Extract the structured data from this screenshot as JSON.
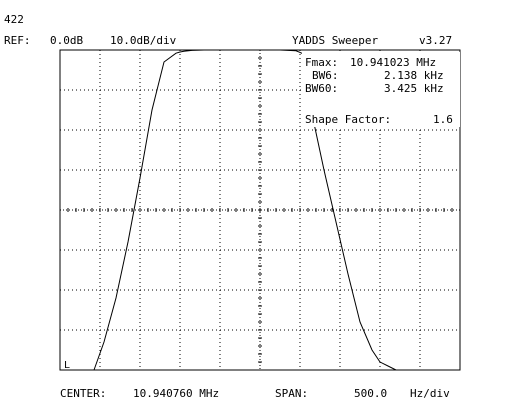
{
  "header": {
    "id_label": "422",
    "ref_label": "REF:",
    "ref_value": "0.0dB",
    "scale": "10.0dB/div",
    "app_title": "YADDS Sweeper",
    "version": "v3.27"
  },
  "readout": {
    "fmax_label": "Fmax:",
    "fmax_value": "10.941023 MHz",
    "bw6_label": "BW6:",
    "bw6_value": "2.138 kHz",
    "bw60_label": "BW60:",
    "bw60_value": "3.425 kHz",
    "shape_label": "Shape Factor:",
    "shape_value": "1.6"
  },
  "footer": {
    "center_label": "CENTER:",
    "center_value": "10.940760 MHz",
    "span_label": "SPAN:",
    "span_value": "500.0",
    "span_unit": "Hz/div"
  },
  "marker_label": "L",
  "colors": {
    "background": "#ffffff",
    "trace": "#000000",
    "grid": "#000000"
  },
  "chart_data": {
    "type": "line",
    "x_divisions": 10,
    "y_divisions": 8,
    "center_mhz": 10.94076,
    "span_hz_per_div": 500.0,
    "ref_db": 0.0,
    "db_per_div": 10.0,
    "series": [
      {
        "x": [
          -4.15,
          -3.9,
          -3.6,
          -3.3,
          -3.0,
          -2.7,
          -2.4,
          -2.1,
          -2.0,
          -1.9,
          -1.7,
          -1.4,
          -1.0,
          -0.5,
          0.0,
          0.5,
          0.9,
          1.0,
          1.2,
          1.3,
          1.6,
          1.9,
          2.2,
          2.5,
          2.8,
          3.0,
          3.2,
          3.4,
          3.5,
          3.7,
          3.85
        ],
        "y": [
          -80,
          -73,
          -62,
          -48,
          -32,
          -15,
          -3,
          -0.8,
          -0.5,
          -0.3,
          -0.1,
          0,
          0,
          0,
          0,
          0,
          -0.2,
          -0.6,
          -1.5,
          -16,
          -30,
          -43,
          -56,
          -68,
          -75,
          -78,
          -79,
          -80,
          -80,
          -80,
          -80
        ]
      }
    ]
  }
}
